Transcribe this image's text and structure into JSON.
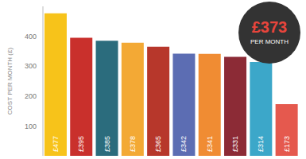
{
  "chart_data": {
    "type": "bar",
    "y_label": "COST PER MONTH (£)",
    "annotation": {
      "value_label": "£373",
      "text": "PER MONTH"
    },
    "values": [
      477,
      395,
      385,
      378,
      365,
      342,
      341,
      331,
      314,
      173
    ],
    "value_labels": [
      "£477",
      "£395",
      "£385",
      "£378",
      "£365",
      "£342",
      "£341",
      "£331",
      "£314",
      "£173"
    ],
    "colors": [
      "#f7c31a",
      "#c9302c",
      "#2b6c7d",
      "#f3a935",
      "#b7372b",
      "#5c6db3",
      "#f08c33",
      "#8c2b36",
      "#3ca7c9",
      "#e5594e"
    ],
    "ylim": [
      0,
      500
    ],
    "yticks": [
      100,
      200,
      300,
      400
    ],
    "grid": false,
    "data_labels": true,
    "tick_labels": "y"
  }
}
